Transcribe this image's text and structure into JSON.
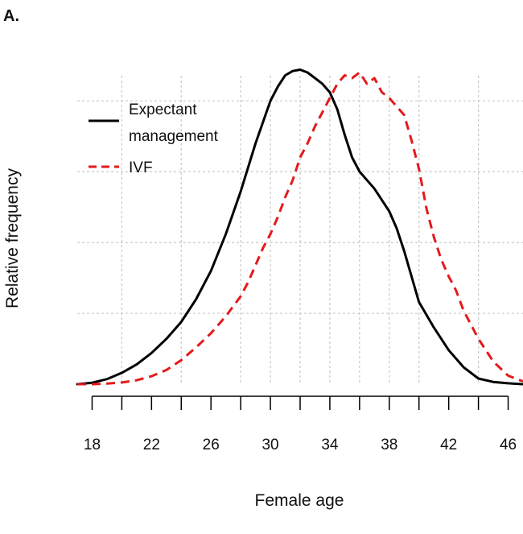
{
  "panel_label": "A.",
  "chart_data": {
    "type": "line",
    "title": "",
    "xlabel": "Female age",
    "ylabel": "Relative frequency",
    "xlim": [
      17,
      47
    ],
    "ylim": [
      0,
      1.1
    ],
    "xticks": [
      18,
      22,
      26,
      30,
      34,
      38,
      42,
      46
    ],
    "minor_xticks": [
      20,
      24,
      28,
      32,
      36,
      40,
      44
    ],
    "vertical_gridlines": [
      20,
      24,
      28,
      30,
      32,
      34,
      36,
      38,
      40,
      44
    ],
    "horizontal_gridlines": [
      0.25,
      0.5,
      0.75,
      1.0
    ],
    "grid": true,
    "legend_position": "top-left",
    "series": [
      {
        "name": "Expectant\nmanagement",
        "legend_lines": [
          "Expectant",
          "management"
        ],
        "color": "#000000",
        "dash": "solid",
        "x": [
          17,
          18,
          19,
          20,
          21,
          22,
          23,
          24,
          25,
          26,
          27,
          28,
          29,
          30,
          30.5,
          31,
          31.5,
          32,
          32.5,
          33,
          33.5,
          34,
          34.5,
          35,
          35.5,
          36,
          37,
          38,
          38.5,
          39,
          39.5,
          40,
          41,
          42,
          43,
          44,
          45,
          46,
          47
        ],
        "values": [
          0.0,
          0.005,
          0.018,
          0.04,
          0.07,
          0.11,
          0.16,
          0.22,
          0.3,
          0.4,
          0.53,
          0.68,
          0.85,
          1.0,
          1.05,
          1.09,
          1.105,
          1.11,
          1.1,
          1.08,
          1.06,
          1.03,
          0.97,
          0.88,
          0.8,
          0.75,
          0.69,
          0.61,
          0.55,
          0.47,
          0.38,
          0.29,
          0.2,
          0.12,
          0.06,
          0.02,
          0.008,
          0.003,
          0.0
        ]
      },
      {
        "name": "IVF",
        "legend_lines": [
          "IVF"
        ],
        "color": "#e31a1c",
        "dash": "dashed",
        "x": [
          17,
          18,
          19,
          20,
          21,
          22,
          23,
          24,
          25,
          26,
          27,
          28,
          28.5,
          29,
          29.5,
          30,
          30.5,
          31,
          31.5,
          32,
          32.5,
          33,
          33.5,
          34,
          34.5,
          35,
          35.5,
          36,
          36.5,
          37,
          37.5,
          38,
          38.5,
          39,
          39.5,
          40,
          40.5,
          41,
          41.5,
          42,
          42.5,
          43,
          44,
          45,
          46,
          47
        ],
        "values": [
          0.0,
          0.0,
          0.002,
          0.006,
          0.014,
          0.028,
          0.05,
          0.085,
          0.13,
          0.18,
          0.24,
          0.31,
          0.36,
          0.42,
          0.48,
          0.53,
          0.59,
          0.66,
          0.72,
          0.8,
          0.85,
          0.91,
          0.96,
          1.01,
          1.06,
          1.09,
          1.08,
          1.1,
          1.06,
          1.08,
          1.03,
          1.01,
          0.98,
          0.95,
          0.86,
          0.76,
          0.62,
          0.52,
          0.44,
          0.38,
          0.33,
          0.26,
          0.16,
          0.08,
          0.03,
          0.01
        ]
      }
    ]
  }
}
